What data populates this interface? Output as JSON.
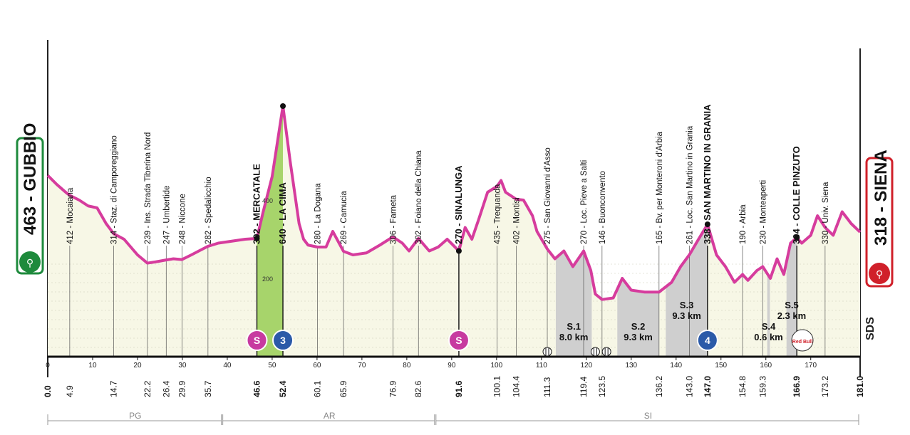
{
  "start": {
    "altitude": "463",
    "name": "GUBBIO",
    "label": "463 - GUBBIO",
    "color": "#1e8a3c"
  },
  "finish": {
    "altitude": "318",
    "name": "SIENA",
    "label": "318 - SIENA",
    "color": "#d0202a"
  },
  "x_axis": {
    "ticks": [
      0,
      10,
      20,
      30,
      40,
      50,
      60,
      70,
      80,
      90,
      100,
      110,
      120,
      130,
      140,
      150,
      160,
      170
    ],
    "max_km": 181
  },
  "alt_axis": {
    "ticks": [
      200,
      400
    ]
  },
  "regions": [
    {
      "label": "PG",
      "from": 0,
      "to": 39
    },
    {
      "label": "AR",
      "from": 39,
      "to": 86.5
    },
    {
      "label": "SI",
      "from": 86.5,
      "to": 181
    }
  ],
  "waypoints": [
    {
      "km": 0.0,
      "km_label": "0.0",
      "label": "",
      "bold": true
    },
    {
      "km": 4.9,
      "km_label": "4.9",
      "label": "412 - Mocaiana",
      "bold": false
    },
    {
      "km": 14.7,
      "km_label": "14.7",
      "label": "314 - Staz. di Camporeggiano",
      "bold": false
    },
    {
      "km": 22.2,
      "km_label": "22.2",
      "label": "239 - Ins. Strada Tiberina Nord",
      "bold": false
    },
    {
      "km": 26.4,
      "km_label": "26.4",
      "label": "247 - Umbertide",
      "bold": false
    },
    {
      "km": 29.9,
      "km_label": "29.9",
      "label": "248 - Niccone",
      "bold": false
    },
    {
      "km": 35.7,
      "km_label": "35.7",
      "label": "282 - Spedalicchio",
      "bold": false
    },
    {
      "km": 46.6,
      "km_label": "46.6",
      "label": "302 - MERCATALE",
      "bold": true
    },
    {
      "km": 52.4,
      "km_label": "52.4",
      "label": "640 - LA CIMA",
      "bold": true
    },
    {
      "km": 60.1,
      "km_label": "60.1",
      "label": "280 - La Dogana",
      "bold": false
    },
    {
      "km": 65.9,
      "km_label": "65.9",
      "label": "269 - Camucia",
      "bold": false
    },
    {
      "km": 76.9,
      "km_label": "76.9",
      "label": "306 - Farneta",
      "bold": false
    },
    {
      "km": 82.6,
      "km_label": "82.6",
      "label": "302 - Foiano della Chiana",
      "bold": false
    },
    {
      "km": 91.6,
      "km_label": "91.6",
      "label": "270 - SINALUNGA",
      "bold": true
    },
    {
      "km": 100.1,
      "km_label": "100.1",
      "label": "435 - Trequanda",
      "bold": false
    },
    {
      "km": 104.4,
      "km_label": "104.4",
      "label": "402 - Montisi",
      "bold": false
    },
    {
      "km": 111.3,
      "km_label": "111.3",
      "label": "275 - San Giovanni d'Asso",
      "bold": false
    },
    {
      "km": 119.4,
      "km_label": "119.4",
      "label": "270 - Loc. Pieve a Salti",
      "bold": false
    },
    {
      "km": 123.5,
      "km_label": "123.5",
      "label": "146 - Buonconvento",
      "bold": false
    },
    {
      "km": 136.2,
      "km_label": "136.2",
      "label": "165 - Bv. per Monteroni d'Arbia",
      "bold": false
    },
    {
      "km": 143.0,
      "km_label": "143.0",
      "label": "261 - Loc. San Martino in Grania",
      "bold": false
    },
    {
      "km": 147.0,
      "km_label": "147.0",
      "label": "338 - SAN MARTINO IN GRANIA",
      "bold": true
    },
    {
      "km": 154.8,
      "km_label": "154.8",
      "label": "190 - Arbia",
      "bold": false
    },
    {
      "km": 159.3,
      "km_label": "159.3",
      "label": "230 - Monteaperti",
      "bold": false
    },
    {
      "km": 166.9,
      "km_label": "166.9",
      "label": "304 - COLLE PINZUTO",
      "bold": true
    },
    {
      "km": 173.2,
      "km_label": "173.2",
      "label": "330 - Univ. Siena",
      "bold": false
    },
    {
      "km": 181.0,
      "km_label": "181.0",
      "label": "",
      "bold": true
    }
  ],
  "profile": {
    "km": [
      0,
      2,
      4,
      4.9,
      7,
      9,
      11,
      12,
      13,
      14.7,
      17,
      20,
      22.2,
      24,
      26.4,
      28,
      29.9,
      32,
      35.7,
      38,
      41,
      44,
      46.6,
      48,
      50,
      52.4,
      54,
      56,
      57,
      58,
      60.1,
      62,
      63.5,
      65.9,
      68,
      71,
      74,
      76.9,
      79,
      80.5,
      82.6,
      85,
      87,
      89,
      91.6,
      93,
      94.5,
      96,
      98,
      100.1,
      101,
      102,
      104.4,
      106,
      108,
      109,
      111.3,
      113,
      115,
      117,
      119.4,
      121,
      122,
      123.5,
      126,
      128,
      130,
      133,
      136.2,
      139,
      141,
      143.0,
      145,
      147.0,
      149,
      151,
      153,
      154.8,
      156,
      158,
      159.3,
      161,
      162.5,
      164,
      165.5,
      166.9,
      168,
      170,
      171.5,
      173.2,
      175,
      177,
      179,
      181
    ],
    "alt": [
      463,
      440,
      420,
      412,
      400,
      385,
      380,
      360,
      340,
      314,
      300,
      260,
      239,
      242,
      247,
      250,
      248,
      260,
      282,
      290,
      295,
      300,
      302,
      370,
      460,
      640,
      500,
      340,
      300,
      285,
      280,
      280,
      320,
      269,
      260,
      265,
      285,
      306,
      290,
      270,
      302,
      270,
      280,
      300,
      270,
      330,
      300,
      350,
      420,
      435,
      450,
      420,
      402,
      400,
      360,
      320,
      275,
      250,
      270,
      230,
      270,
      220,
      160,
      146,
      150,
      200,
      170,
      165,
      165,
      190,
      230,
      261,
      300,
      338,
      260,
      230,
      190,
      210,
      195,
      220,
      230,
      200,
      250,
      210,
      290,
      304,
      290,
      310,
      360,
      330,
      310,
      370,
      340,
      318
    ]
  },
  "climbs": [
    {
      "label": "La Cima",
      "from": 46.6,
      "to": 52.4,
      "badge": "3",
      "badge_color": "#2b5aa8"
    },
    {
      "label": "San Martino in Grania",
      "from": 143.0,
      "to": 147.0,
      "badge": "4",
      "badge_color": "#2b5aa8"
    }
  ],
  "sprints": [
    {
      "km": 46.6,
      "label": "S"
    },
    {
      "km": 91.6,
      "label": "S"
    }
  ],
  "gravel_sectors": [
    {
      "name": "S.1",
      "length": "8.0 km",
      "from": 113.2,
      "to": 121.2
    },
    {
      "name": "S.2",
      "length": "9.3 km",
      "from": 126.9,
      "to": 136.2
    },
    {
      "name": "S.3",
      "length": "9.3 km",
      "from": 137.7,
      "to": 147.0
    },
    {
      "name": "S.4",
      "length": "0.6 km",
      "from": 160.3,
      "to": 160.9
    },
    {
      "name": "S.5",
      "length": "2.3 km",
      "from": 164.6,
      "to": 166.9
    }
  ],
  "rail_crossings": [
    111.3,
    122.0,
    124.5
  ],
  "redbull_label": "Red Bull",
  "sds_label": "SDS",
  "colors": {
    "profile": "#d63c9d",
    "climb_fill": "#a7d46b",
    "gravel": "#cfcfcf",
    "axis": "#222222",
    "grid": "#555555"
  }
}
